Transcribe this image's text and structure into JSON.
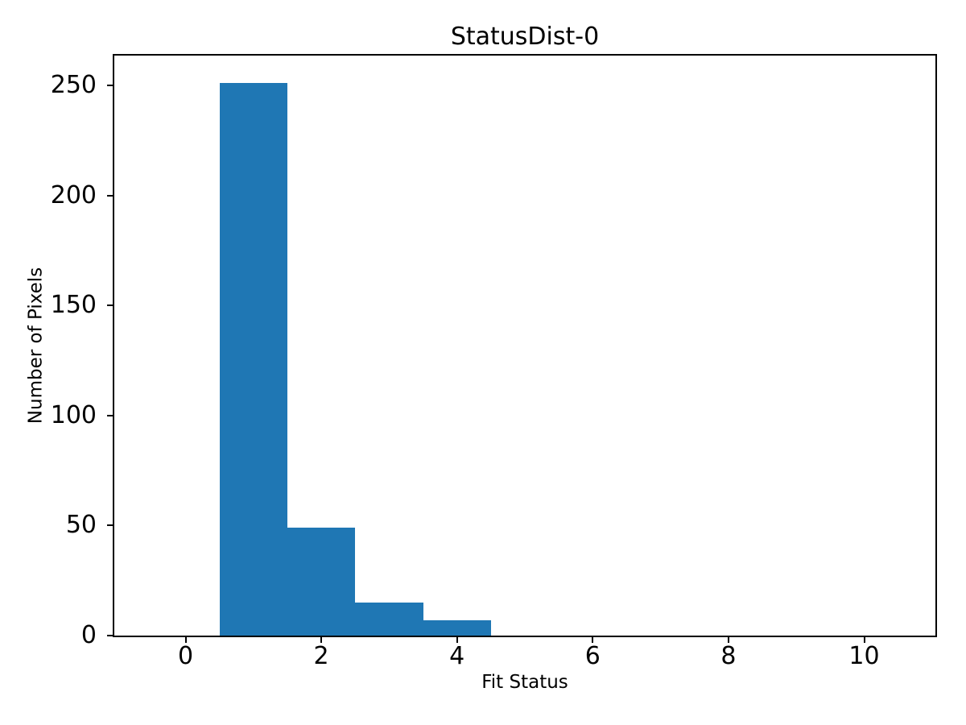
{
  "chart_data": {
    "type": "histogram",
    "title": "StatusDist-0",
    "xlabel": "Fit Status",
    "ylabel": "Number of Pixels",
    "bar_color": "#1f77b4",
    "text_color": "#000000",
    "background": "#ffffff",
    "bin_edges": [
      0.5,
      1.5,
      2.5,
      3.5,
      4.5
    ],
    "counts": [
      251,
      49,
      15,
      7
    ],
    "xticks": [
      0,
      2,
      4,
      6,
      8,
      10
    ],
    "yticks": [
      0,
      50,
      100,
      150,
      200,
      250
    ],
    "xlim": [
      -1.05,
      11.05
    ],
    "ylim": [
      0,
      263.55
    ],
    "grid": false,
    "legend": null
  }
}
